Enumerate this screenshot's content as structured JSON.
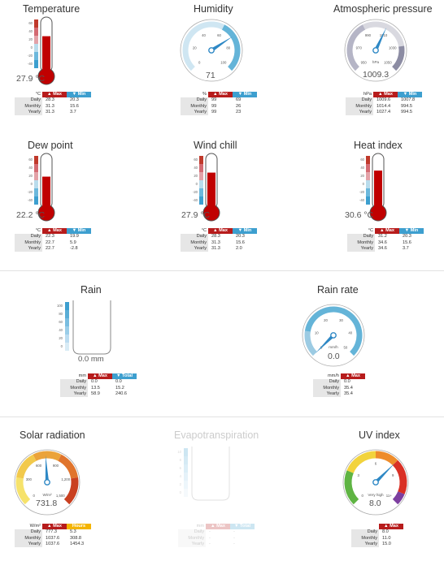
{
  "colors": {
    "red": "#c00000",
    "blue": "#3d9fcf",
    "gauge_blue": "#64b4d8",
    "light_blue": "#cfe6f2",
    "grey": "#999aa8"
  },
  "temperature": {
    "title": "Temperature",
    "value": "27.9 °C",
    "level": 0.7,
    "scale": [
      "60",
      "40",
      "20",
      "0",
      "-20",
      "-40"
    ],
    "unit": "°C",
    "h1": "Max",
    "h2": "Min",
    "rows": [
      [
        "Daily",
        "28.3",
        "20.3"
      ],
      [
        "Monthly",
        "31.3",
        "15.6"
      ],
      [
        "Yearly",
        "31.3",
        "3.7"
      ]
    ]
  },
  "humidity": {
    "title": "Humidity",
    "value": "71",
    "needle": 71,
    "scale": [
      "0",
      "20",
      "40",
      "60",
      "80",
      "100"
    ],
    "unit_label": "%",
    "h1": "Max",
    "h2": "Min",
    "rows": [
      [
        "Daily",
        "99",
        "69"
      ],
      [
        "Monthly",
        "99",
        "26"
      ],
      [
        "Yearly",
        "99",
        "23"
      ]
    ]
  },
  "pressure": {
    "title": "Atmospheric pressure",
    "value": "1009.3",
    "needle": 1009.3,
    "gauge_unit": "hPa",
    "scale": [
      "950",
      "970",
      "990",
      "1010",
      "1030",
      "1050"
    ],
    "unit_label": "hPa",
    "h1": "Max",
    "h2": "Min",
    "rows": [
      [
        "Daily",
        "1009.6",
        "1007.8"
      ],
      [
        "Monthly",
        "1014.4",
        "994.5"
      ],
      [
        "Yearly",
        "1027.4",
        "994.5"
      ]
    ]
  },
  "dew_point": {
    "title": "Dew point",
    "value": "22.2 °C",
    "level": 0.62,
    "scale": [
      "60",
      "40",
      "20",
      "0",
      "-20",
      "-40"
    ],
    "unit": "°C",
    "h1": "Max",
    "h2": "Min",
    "rows": [
      [
        "Daily",
        "22.3",
        "19.9"
      ],
      [
        "Monthly",
        "22.7",
        "5.9"
      ],
      [
        "Yearly",
        "22.7",
        "-2.8"
      ]
    ]
  },
  "wind_chill": {
    "title": "Wind chill",
    "value": "27.9 °C",
    "level": 0.7,
    "scale": [
      "60",
      "40",
      "20",
      "0",
      "-20",
      "-40"
    ],
    "unit": "°C",
    "h1": "Max",
    "h2": "Min",
    "rows": [
      [
        "Daily",
        "28.3",
        "20.3"
      ],
      [
        "Monthly",
        "31.3",
        "15.6"
      ],
      [
        "Yearly",
        "31.3",
        "2.0"
      ]
    ]
  },
  "heat_index": {
    "title": "Heat index",
    "value": "30.6 °C",
    "level": 0.74,
    "scale": [
      "60",
      "40",
      "20",
      "0",
      "-20",
      "-40"
    ],
    "unit": "°C",
    "h1": "Max",
    "h2": "Min",
    "rows": [
      [
        "Daily",
        "31.2",
        "20.3"
      ],
      [
        "Monthly",
        "34.6",
        "15.6"
      ],
      [
        "Yearly",
        "34.6",
        "3.7"
      ]
    ]
  },
  "rain": {
    "title": "Rain",
    "value": "0.0  mm",
    "scale": [
      "100",
      "80",
      "60",
      "40",
      "20",
      "0"
    ],
    "unit": "mm",
    "h1": "Max",
    "h2": "Total",
    "rows": [
      [
        "Daily",
        "0.0",
        "0.0"
      ],
      [
        "Monthly",
        "13.5",
        "15.2"
      ],
      [
        "Yearly",
        "58.9",
        "240.6"
      ]
    ]
  },
  "rain_rate": {
    "title": "Rain rate",
    "value": "0.0",
    "needle": 0,
    "gauge_unit": "mm/h",
    "scale": [
      "0",
      "10",
      "20",
      "30",
      "40",
      "50"
    ],
    "unit_label": "mm/h",
    "h1": "Max",
    "rows": [
      [
        "Daily",
        "0.0"
      ],
      [
        "Monthly",
        "35.4"
      ],
      [
        "Yearly",
        "35.4"
      ]
    ]
  },
  "solar": {
    "title": "Solar radiation",
    "value": "731.8",
    "needle": 731.8,
    "gauge_unit": "W/m²",
    "scale": [
      "0",
      "300",
      "600",
      "900",
      "1,200",
      "1,500"
    ],
    "unit_label": "W/m²",
    "h1": "Max",
    "h2": "Hours",
    "rows": [
      [
        "Daily",
        "777.3",
        "5.3"
      ],
      [
        "Monthly",
        "1037.6",
        "308.8"
      ],
      [
        "Yearly",
        "1037.6",
        "1454.3"
      ]
    ]
  },
  "evapo": {
    "title": "Evapotranspiration",
    "scale": [
      "10",
      "8",
      "6",
      "4",
      "2",
      "0"
    ],
    "unit": "mm",
    "h1": "Max",
    "h2": "Total",
    "rows": [
      [
        "Daily",
        "-",
        "-"
      ],
      [
        "Monthly",
        "-",
        "-"
      ],
      [
        "Yearly",
        "-",
        "-"
      ]
    ]
  },
  "uv": {
    "title": "UV index",
    "value": "8.0",
    "needle": 8,
    "gauge_unit": "Very high",
    "scale": [
      "0",
      "3",
      "6",
      "9",
      "11+"
    ],
    "unit_label": "",
    "h1": "Max",
    "rows": [
      [
        "Daily",
        "8.0"
      ],
      [
        "Monthly",
        "11.0"
      ],
      [
        "Yearly",
        "15.0"
      ]
    ]
  }
}
